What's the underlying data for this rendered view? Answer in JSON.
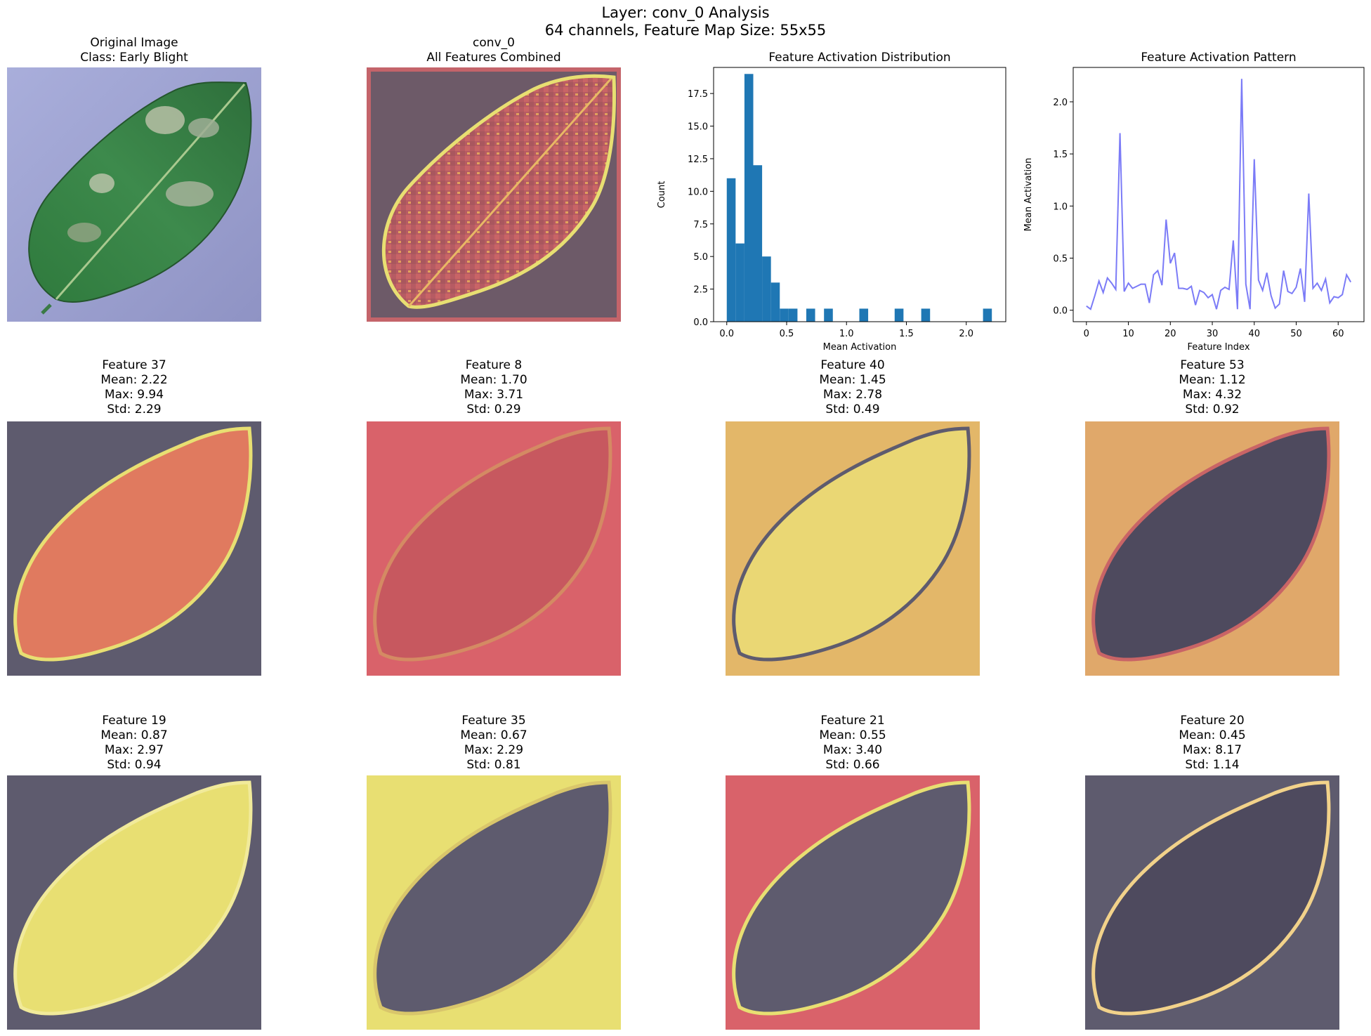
{
  "figure": {
    "title_line1": "Layer: conv_0 Analysis",
    "title_line2": "64 channels, Feature Map Size: 55x55"
  },
  "original": {
    "title_line1": "Original Image",
    "title_line2": "Class: Early Blight"
  },
  "combined": {
    "title_line1": "conv_0",
    "title_line2": "All Features Combined"
  },
  "features": [
    {
      "title": "Feature 37",
      "mean": "Mean: 2.22",
      "max": "Max: 9.94",
      "std": "Std: 2.29"
    },
    {
      "title": "Feature 8",
      "mean": "Mean: 1.70",
      "max": "Max: 3.71",
      "std": "Std: 0.29"
    },
    {
      "title": "Feature 40",
      "mean": "Mean: 1.45",
      "max": "Max: 2.78",
      "std": "Std: 0.49"
    },
    {
      "title": "Feature 53",
      "mean": "Mean: 1.12",
      "max": "Max: 4.32",
      "std": "Std: 0.92"
    },
    {
      "title": "Feature 19",
      "mean": "Mean: 0.87",
      "max": "Max: 2.97",
      "std": "Std: 0.94"
    },
    {
      "title": "Feature 35",
      "mean": "Mean: 0.67",
      "max": "Max: 2.29",
      "std": "Std: 0.81"
    },
    {
      "title": "Feature 21",
      "mean": "Mean: 0.55",
      "max": "Max: 3.40",
      "std": "Std: 0.66"
    },
    {
      "title": "Feature 20",
      "mean": "Mean: 0.45",
      "max": "Max: 8.17",
      "std": "Std: 1.14"
    }
  ],
  "colors": {
    "histogram": "#1f77b4",
    "line": "#7b7bf7",
    "heat_dark": "#5e5b6e",
    "heat_red": "#d9626a",
    "heat_yellow": "#e8df72"
  },
  "chart_data": [
    {
      "type": "bar",
      "title": "Feature Activation Distribution",
      "xlabel": "Mean Activation",
      "ylabel": "Count",
      "bin_width": 0.0738,
      "bin_starts": [
        0.0,
        0.0738,
        0.1476,
        0.2214,
        0.2952,
        0.369,
        0.4428,
        0.5166,
        0.664,
        0.812,
        1.107,
        1.402,
        1.624,
        2.14
      ],
      "values": [
        11,
        6,
        19,
        12,
        5,
        3,
        1,
        1,
        1,
        1,
        1,
        1,
        1,
        1
      ],
      "xlim": [
        -0.11,
        2.33
      ],
      "ylim": [
        0,
        19.5
      ],
      "xticks": [
        0.0,
        0.5,
        1.0,
        1.5,
        2.0
      ],
      "xtick_labels": [
        "0.0",
        "0.5",
        "1.0",
        "1.5",
        "2.0"
      ],
      "yticks": [
        0,
        2.5,
        5,
        7.5,
        10,
        12.5,
        15,
        17.5
      ],
      "ytick_labels": [
        "0.0",
        "2.5",
        "5.0",
        "7.5",
        "10.0",
        "12.5",
        "15.0",
        "17.5"
      ]
    },
    {
      "type": "line",
      "title": "Feature Activation Pattern",
      "xlabel": "Feature Index",
      "ylabel": "Mean Activation",
      "x_start": 0,
      "values": [
        0.04,
        0.01,
        0.14,
        0.28,
        0.17,
        0.31,
        0.26,
        0.2,
        1.7,
        0.18,
        0.26,
        0.21,
        0.23,
        0.25,
        0.25,
        0.07,
        0.34,
        0.38,
        0.24,
        0.87,
        0.45,
        0.55,
        0.21,
        0.21,
        0.2,
        0.23,
        0.05,
        0.19,
        0.17,
        0.12,
        0.15,
        0.01,
        0.19,
        0.22,
        0.2,
        0.67,
        0.01,
        2.22,
        0.25,
        0.01,
        1.45,
        0.29,
        0.19,
        0.36,
        0.14,
        0.02,
        0.06,
        0.38,
        0.18,
        0.16,
        0.22,
        0.4,
        0.08,
        1.12,
        0.21,
        0.26,
        0.19,
        0.3,
        0.07,
        0.13,
        0.12,
        0.15,
        0.34,
        0.27
      ],
      "xlim": [
        -3.15,
        66.15
      ],
      "ylim": [
        -0.11,
        2.33
      ],
      "xticks": [
        0,
        10,
        20,
        30,
        40,
        50,
        60
      ],
      "xtick_labels": [
        "0",
        "10",
        "20",
        "30",
        "40",
        "50",
        "60"
      ],
      "yticks": [
        0,
        0.5,
        1.0,
        1.5,
        2.0
      ],
      "ytick_labels": [
        "0.0",
        "0.5",
        "1.0",
        "1.5",
        "2.0"
      ]
    }
  ]
}
